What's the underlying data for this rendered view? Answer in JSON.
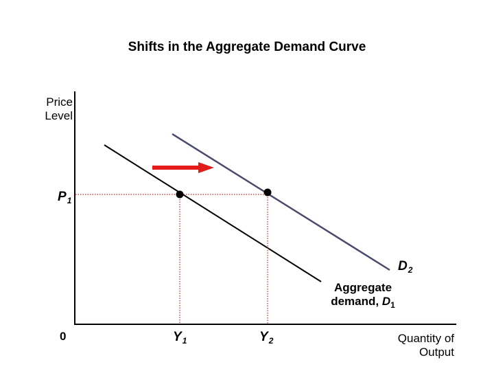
{
  "title": "Shifts in the Aggregate Demand Curve",
  "axes": {
    "y_label_line1": "Price",
    "y_label_line2": "Level",
    "x_label_line1": "Quantity of",
    "x_label_line2": "Output",
    "origin": "0"
  },
  "markers": {
    "p1": {
      "base": "P",
      "sub": "1"
    },
    "y1": {
      "base": "Y",
      "sub": "1"
    },
    "y2": {
      "base": "Y",
      "sub": "2"
    }
  },
  "curves": {
    "d1": {
      "prefix": "Aggregate",
      "text": "demand, ",
      "sym": "D",
      "sub": "1",
      "color": "#000000"
    },
    "d2": {
      "base": "D",
      "sub": "2",
      "color": "#4a4a6e"
    }
  },
  "colors": {
    "axes": "#000000",
    "guides": "#cc2222",
    "shift_arrow": "#e21b1b",
    "points": "#000000"
  }
}
